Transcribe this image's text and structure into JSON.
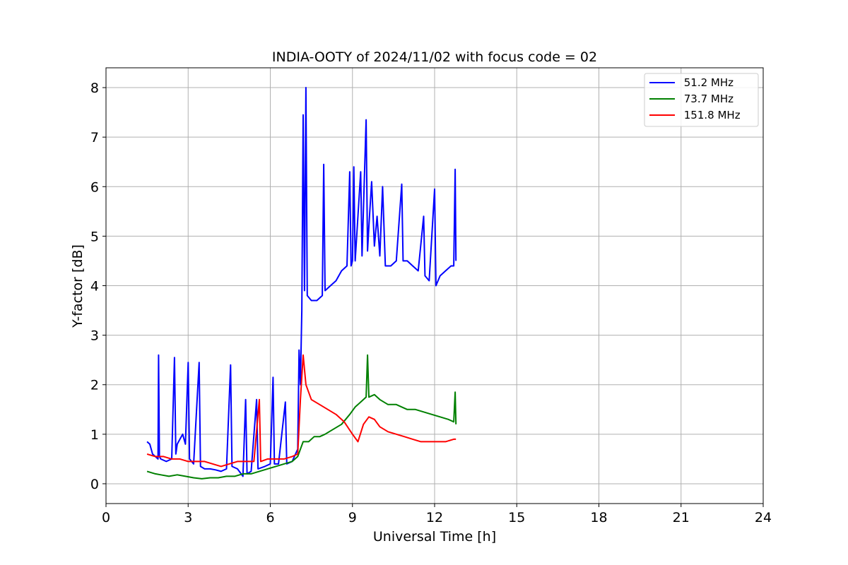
{
  "chart_data": {
    "type": "line",
    "title": "INDIA-OOTY of 2024/11/02 with focus code = 02",
    "xlabel": "Universal Time [h]",
    "ylabel": "Y-factor [dB]",
    "xlim": [
      0,
      24
    ],
    "ylim": [
      -0.4,
      8.4
    ],
    "xticks": [
      0,
      3,
      6,
      9,
      12,
      15,
      18,
      21,
      24
    ],
    "yticks": [
      0,
      1,
      2,
      3,
      4,
      5,
      6,
      7,
      8
    ],
    "grid": true,
    "legend_position": "top-right",
    "series": [
      {
        "name": " 51.2 MHz",
        "color": "#0000ff",
        "points": [
          [
            1.5,
            0.85
          ],
          [
            1.6,
            0.8
          ],
          [
            1.7,
            0.6
          ],
          [
            1.8,
            0.55
          ],
          [
            1.9,
            0.5
          ],
          [
            1.92,
            2.6
          ],
          [
            1.95,
            0.55
          ],
          [
            2.0,
            0.5
          ],
          [
            2.2,
            0.45
          ],
          [
            2.4,
            0.5
          ],
          [
            2.5,
            2.55
          ],
          [
            2.55,
            0.6
          ],
          [
            2.6,
            0.8
          ],
          [
            2.7,
            0.9
          ],
          [
            2.8,
            1.0
          ],
          [
            2.9,
            0.8
          ],
          [
            3.0,
            2.45
          ],
          [
            3.05,
            0.5
          ],
          [
            3.2,
            0.4
          ],
          [
            3.4,
            2.45
          ],
          [
            3.45,
            0.35
          ],
          [
            3.6,
            0.3
          ],
          [
            3.8,
            0.3
          ],
          [
            4.0,
            0.28
          ],
          [
            4.2,
            0.25
          ],
          [
            4.4,
            0.3
          ],
          [
            4.55,
            2.4
          ],
          [
            4.6,
            0.35
          ],
          [
            4.8,
            0.3
          ],
          [
            5.0,
            0.15
          ],
          [
            5.1,
            1.7
          ],
          [
            5.15,
            0.2
          ],
          [
            5.3,
            0.25
          ],
          [
            5.5,
            1.7
          ],
          [
            5.55,
            0.3
          ],
          [
            5.8,
            0.35
          ],
          [
            6.0,
            0.4
          ],
          [
            6.1,
            2.15
          ],
          [
            6.15,
            0.4
          ],
          [
            6.3,
            0.4
          ],
          [
            6.55,
            1.65
          ],
          [
            6.6,
            0.4
          ],
          [
            6.8,
            0.45
          ],
          [
            7.0,
            0.7
          ],
          [
            7.05,
            2.7
          ],
          [
            7.1,
            2.0
          ],
          [
            7.15,
            3.5
          ],
          [
            7.2,
            7.45
          ],
          [
            7.25,
            3.9
          ],
          [
            7.3,
            8.0
          ],
          [
            7.35,
            3.8
          ],
          [
            7.5,
            3.7
          ],
          [
            7.7,
            3.7
          ],
          [
            7.9,
            3.8
          ],
          [
            7.95,
            6.45
          ],
          [
            8.0,
            3.9
          ],
          [
            8.2,
            4.0
          ],
          [
            8.4,
            4.1
          ],
          [
            8.6,
            4.3
          ],
          [
            8.8,
            4.4
          ],
          [
            8.9,
            6.3
          ],
          [
            8.95,
            4.4
          ],
          [
            9.0,
            4.5
          ],
          [
            9.05,
            6.4
          ],
          [
            9.1,
            4.5
          ],
          [
            9.3,
            6.3
          ],
          [
            9.35,
            4.6
          ],
          [
            9.5,
            7.35
          ],
          [
            9.55,
            4.7
          ],
          [
            9.6,
            5.2
          ],
          [
            9.7,
            6.1
          ],
          [
            9.8,
            4.8
          ],
          [
            9.9,
            5.4
          ],
          [
            10.0,
            4.6
          ],
          [
            10.1,
            6.0
          ],
          [
            10.2,
            4.4
          ],
          [
            10.4,
            4.4
          ],
          [
            10.6,
            4.5
          ],
          [
            10.8,
            6.05
          ],
          [
            10.85,
            4.5
          ],
          [
            11.0,
            4.5
          ],
          [
            11.2,
            4.4
          ],
          [
            11.4,
            4.3
          ],
          [
            11.6,
            5.4
          ],
          [
            11.65,
            4.2
          ],
          [
            11.8,
            4.1
          ],
          [
            12.0,
            5.95
          ],
          [
            12.05,
            4.0
          ],
          [
            12.2,
            4.2
          ],
          [
            12.4,
            4.3
          ],
          [
            12.6,
            4.4
          ],
          [
            12.7,
            4.4
          ],
          [
            12.75,
            6.35
          ],
          [
            12.78,
            4.5
          ]
        ]
      },
      {
        "name": " 73.7 MHz",
        "color": "#008000",
        "points": [
          [
            1.5,
            0.25
          ],
          [
            1.8,
            0.2
          ],
          [
            2.0,
            0.18
          ],
          [
            2.3,
            0.15
          ],
          [
            2.6,
            0.18
          ],
          [
            2.9,
            0.15
          ],
          [
            3.2,
            0.12
          ],
          [
            3.5,
            0.1
          ],
          [
            3.8,
            0.12
          ],
          [
            4.1,
            0.12
          ],
          [
            4.4,
            0.15
          ],
          [
            4.7,
            0.15
          ],
          [
            5.0,
            0.2
          ],
          [
            5.3,
            0.2
          ],
          [
            5.6,
            0.25
          ],
          [
            5.9,
            0.3
          ],
          [
            6.2,
            0.35
          ],
          [
            6.5,
            0.4
          ],
          [
            6.8,
            0.45
          ],
          [
            7.0,
            0.55
          ],
          [
            7.2,
            0.85
          ],
          [
            7.4,
            0.85
          ],
          [
            7.6,
            0.95
          ],
          [
            7.8,
            0.95
          ],
          [
            8.0,
            1.0
          ],
          [
            8.3,
            1.1
          ],
          [
            8.6,
            1.2
          ],
          [
            8.9,
            1.4
          ],
          [
            9.1,
            1.55
          ],
          [
            9.3,
            1.65
          ],
          [
            9.5,
            1.75
          ],
          [
            9.55,
            2.6
          ],
          [
            9.6,
            1.75
          ],
          [
            9.8,
            1.8
          ],
          [
            10.0,
            1.7
          ],
          [
            10.3,
            1.6
          ],
          [
            10.6,
            1.6
          ],
          [
            10.8,
            1.55
          ],
          [
            11.0,
            1.5
          ],
          [
            11.3,
            1.5
          ],
          [
            11.6,
            1.45
          ],
          [
            11.9,
            1.4
          ],
          [
            12.2,
            1.35
          ],
          [
            12.5,
            1.3
          ],
          [
            12.7,
            1.25
          ],
          [
            12.75,
            1.85
          ],
          [
            12.78,
            1.2
          ]
        ]
      },
      {
        "name": " 151.8 MHz",
        "color": "#ff0000",
        "points": [
          [
            1.5,
            0.6
          ],
          [
            1.8,
            0.55
          ],
          [
            2.1,
            0.55
          ],
          [
            2.4,
            0.5
          ],
          [
            2.7,
            0.5
          ],
          [
            3.0,
            0.45
          ],
          [
            3.3,
            0.45
          ],
          [
            3.6,
            0.45
          ],
          [
            3.9,
            0.4
          ],
          [
            4.2,
            0.35
          ],
          [
            4.5,
            0.4
          ],
          [
            4.8,
            0.45
          ],
          [
            5.1,
            0.45
          ],
          [
            5.4,
            0.45
          ],
          [
            5.6,
            1.7
          ],
          [
            5.65,
            0.45
          ],
          [
            5.9,
            0.5
          ],
          [
            6.2,
            0.5
          ],
          [
            6.5,
            0.5
          ],
          [
            6.8,
            0.55
          ],
          [
            7.0,
            0.6
          ],
          [
            7.1,
            1.7
          ],
          [
            7.2,
            2.6
          ],
          [
            7.3,
            2.0
          ],
          [
            7.5,
            1.7
          ],
          [
            7.8,
            1.6
          ],
          [
            8.1,
            1.5
          ],
          [
            8.4,
            1.4
          ],
          [
            8.7,
            1.25
          ],
          [
            9.0,
            1.0
          ],
          [
            9.2,
            0.85
          ],
          [
            9.4,
            1.2
          ],
          [
            9.6,
            1.35
          ],
          [
            9.8,
            1.3
          ],
          [
            10.0,
            1.15
          ],
          [
            10.3,
            1.05
          ],
          [
            10.6,
            1.0
          ],
          [
            10.9,
            0.95
          ],
          [
            11.2,
            0.9
          ],
          [
            11.5,
            0.85
          ],
          [
            11.8,
            0.85
          ],
          [
            12.1,
            0.85
          ],
          [
            12.4,
            0.85
          ],
          [
            12.7,
            0.9
          ],
          [
            12.78,
            0.9
          ]
        ]
      }
    ]
  }
}
